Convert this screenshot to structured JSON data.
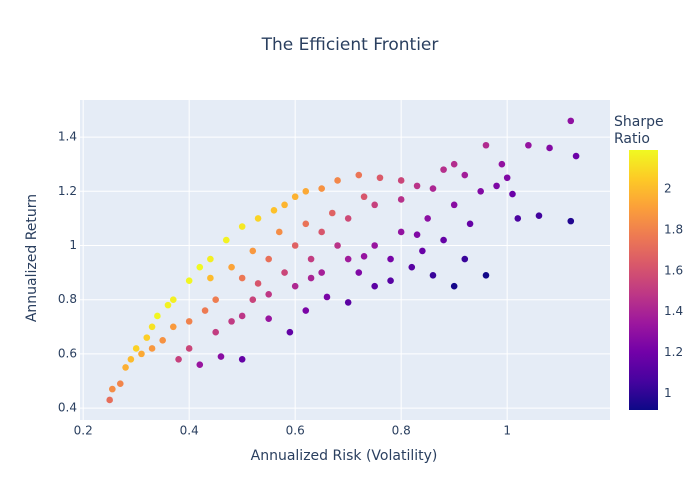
{
  "chart_data": {
    "type": "scatter",
    "title": "The Efficient Frontier",
    "xlabel": "Annualized Risk (Volatility)",
    "ylabel": "Annualized Return",
    "x": [
      0.25,
      0.255,
      0.27,
      0.28,
      0.29,
      0.3,
      0.31,
      0.32,
      0.33,
      0.34,
      0.36,
      0.37,
      0.4,
      0.42,
      0.44,
      0.47,
      0.5,
      0.53,
      0.56,
      0.58,
      0.6,
      0.62,
      0.65,
      0.68,
      0.72,
      0.76,
      0.8,
      0.83,
      0.86,
      0.88,
      0.9,
      0.92,
      0.96,
      0.99,
      1.0,
      1.02,
      1.04,
      1.06,
      1.08,
      1.12,
      1.13,
      1.12,
      0.96,
      0.9,
      0.92,
      0.86,
      0.84,
      0.78,
      0.75,
      0.7,
      0.66,
      0.62,
      0.59,
      0.55,
      0.5,
      0.46,
      0.42,
      0.38,
      0.4,
      0.45,
      0.5,
      0.55,
      0.6,
      0.65,
      0.7,
      0.75,
      0.8,
      0.85,
      0.9,
      0.95,
      0.45,
      0.5,
      0.55,
      0.6,
      0.65,
      0.7,
      0.75,
      0.4,
      0.35,
      0.48,
      0.52,
      0.58,
      0.63,
      0.68,
      0.72,
      0.78,
      0.82,
      0.88,
      0.93,
      0.98,
      1.01,
      0.44,
      0.48,
      0.52,
      0.57,
      0.62,
      0.67,
      0.73,
      0.8,
      0.37,
      0.33,
      0.43,
      0.53,
      0.63,
      0.73,
      0.83
    ],
    "values": [
      0.43,
      0.47,
      0.49,
      0.55,
      0.58,
      0.62,
      0.6,
      0.66,
      0.7,
      0.74,
      0.78,
      0.8,
      0.87,
      0.92,
      0.95,
      1.02,
      1.07,
      1.1,
      1.13,
      1.15,
      1.18,
      1.2,
      1.21,
      1.24,
      1.26,
      1.25,
      1.24,
      1.22,
      1.21,
      1.28,
      1.3,
      1.26,
      1.37,
      1.3,
      1.25,
      1.1,
      1.37,
      1.11,
      1.36,
      1.46,
      1.33,
      1.09,
      0.89,
      0.85,
      0.95,
      0.89,
      0.98,
      0.87,
      0.85,
      0.79,
      0.81,
      0.76,
      0.68,
      0.73,
      0.58,
      0.59,
      0.56,
      0.58,
      0.62,
      0.68,
      0.74,
      0.82,
      0.85,
      0.9,
      0.95,
      1.0,
      1.05,
      1.1,
      1.15,
      1.2,
      0.8,
      0.88,
      0.95,
      1.0,
      1.05,
      1.1,
      1.15,
      0.72,
      0.65,
      0.72,
      0.8,
      0.9,
      0.95,
      1.0,
      0.9,
      0.95,
      0.92,
      1.02,
      1.08,
      1.22,
      1.19,
      0.88,
      0.92,
      0.98,
      1.05,
      1.08,
      1.12,
      1.18,
      1.17,
      0.7,
      0.62,
      0.76,
      0.86,
      0.88,
      0.96,
      1.04
    ],
    "color_values": [
      1.72,
      1.84,
      1.81,
      1.96,
      2.0,
      2.07,
      1.94,
      2.06,
      2.12,
      2.18,
      2.17,
      2.16,
      2.18,
      2.19,
      2.16,
      2.17,
      2.14,
      2.08,
      2.02,
      1.98,
      1.97,
      1.94,
      1.86,
      1.82,
      1.75,
      1.64,
      1.55,
      1.47,
      1.41,
      1.45,
      1.44,
      1.37,
      1.43,
      1.31,
      1.25,
      1.08,
      1.32,
      1.05,
      1.26,
      1.3,
      1.18,
      0.97,
      0.93,
      0.94,
      1.03,
      1.03,
      1.17,
      1.12,
      1.13,
      1.13,
      1.23,
      1.23,
      1.15,
      1.33,
      1.16,
      1.28,
      1.33,
      1.53,
      1.55,
      1.51,
      1.48,
      1.49,
      1.42,
      1.38,
      1.36,
      1.33,
      1.31,
      1.29,
      1.28,
      1.26,
      1.78,
      1.76,
      1.73,
      1.67,
      1.62,
      1.57,
      1.53,
      1.8,
      1.86,
      1.5,
      1.54,
      1.55,
      1.51,
      1.47,
      1.25,
      1.22,
      1.12,
      1.16,
      1.16,
      1.24,
      1.18,
      2.0,
      1.92,
      1.88,
      1.84,
      1.74,
      1.67,
      1.62,
      1.46,
      1.89,
      1.88,
      1.77,
      1.62,
      1.4,
      1.32,
      1.25
    ],
    "colorscale": [
      "#0d0887",
      "#46039f",
      "#7201a8",
      "#9c179e",
      "#bd3786",
      "#d8576b",
      "#ed7953",
      "#fb9f3a",
      "#fdca26",
      "#f0f921"
    ],
    "colorbar": {
      "title": [
        "Sharpe",
        "Ratio"
      ],
      "lim": [
        0.92,
        2.19
      ],
      "ticks": [
        1,
        1.2,
        1.4,
        1.6,
        1.8,
        2
      ]
    },
    "xlim": [
      0.194,
      1.194
    ],
    "xticks": [
      0.2,
      0.4,
      0.6,
      0.8,
      1
    ],
    "ylim": [
      0.356,
      1.537
    ],
    "yticks": [
      0.4,
      0.6,
      0.8,
      1,
      1.2,
      1.4
    ],
    "grid": true
  }
}
